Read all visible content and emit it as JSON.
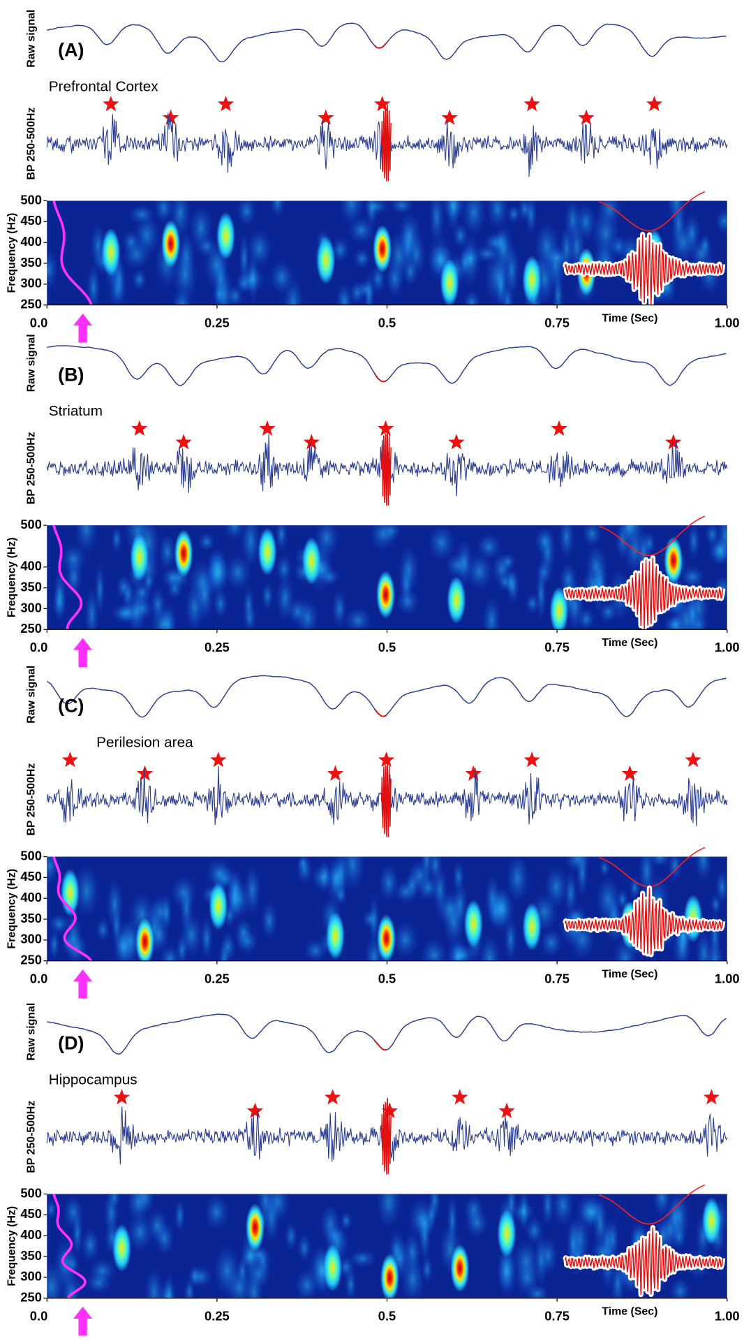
{
  "chart_data": [
    {
      "type": "spectrogram",
      "label": "(A)",
      "region": "Prefrontal Cortex",
      "raw_label": "Raw signal",
      "bp_label": "BP 250-500Hz",
      "y_label": "Frequency (Hz)",
      "x_label": "Time (Sec)",
      "xlim": [
        0,
        1
      ],
      "xticks": [
        {
          "value": 0,
          "label": "0.0"
        },
        0.25,
        0.5,
        0.75,
        {
          "value": 1,
          "label": "1.00"
        }
      ],
      "ylim": [
        250,
        500
      ],
      "yticks": [
        250,
        300,
        350,
        400,
        450,
        500
      ],
      "ripple_times": [
        0.094,
        0.182,
        0.263,
        0.41,
        0.493,
        0.592,
        0.713,
        0.793,
        0.893
      ]
    },
    {
      "type": "spectrogram",
      "label": "(B)",
      "region": "Striatum",
      "raw_label": "Raw signal",
      "bp_label": "BP 250-500Hz",
      "y_label": "Frequency (Hz)",
      "x_label": "Time (Sec)",
      "xlim": [
        0,
        1
      ],
      "xticks": [
        {
          "value": 0,
          "label": "0.0"
        },
        0.25,
        0.5,
        0.75,
        {
          "value": 1,
          "label": "1.00"
        }
      ],
      "ylim": [
        250,
        500
      ],
      "yticks": [
        250,
        300,
        350,
        400,
        500
      ],
      "ripple_times": [
        0.136,
        0.201,
        0.324,
        0.389,
        0.498,
        0.602,
        0.753,
        0.921
      ]
    },
    {
      "type": "spectrogram",
      "label": "(C)",
      "region": "Perilesion area",
      "raw_label": "Raw signal",
      "bp_label": "BP 250-500Hz",
      "y_label": "Frequency (Hz)",
      "x_label": "Time (Sec)",
      "xlim": [
        0,
        1
      ],
      "xticks": [
        {
          "value": 0,
          "label": "0.0"
        },
        0.25,
        0.5,
        0.75,
        {
          "value": 1,
          "label": "1.00"
        }
      ],
      "ylim": [
        250,
        500
      ],
      "yticks": [
        250,
        300,
        350,
        400,
        450,
        500
      ],
      "ripple_times": [
        0.034,
        0.144,
        0.252,
        0.424,
        0.499,
        0.627,
        0.713,
        0.857,
        0.95
      ]
    },
    {
      "type": "spectrogram",
      "label": "(D)",
      "region": "Hippocampus",
      "raw_label": "Raw signal",
      "bp_label": "BP 250-500Hz",
      "y_label": "Frequency (Hz)",
      "x_label": "Time (Sec)",
      "xlim": [
        0,
        1
      ],
      "xticks": [
        {
          "value": 0,
          "label": "0.0"
        },
        0.25,
        0.5,
        0.75,
        {
          "value": 1,
          "label": "1.00"
        }
      ],
      "ylim": [
        250,
        500
      ],
      "yticks": [
        250,
        300,
        350,
        400,
        450,
        500
      ],
      "ripple_times": [
        0.11,
        0.306,
        0.42,
        0.504,
        0.607,
        0.676,
        0.977
      ]
    }
  ]
}
